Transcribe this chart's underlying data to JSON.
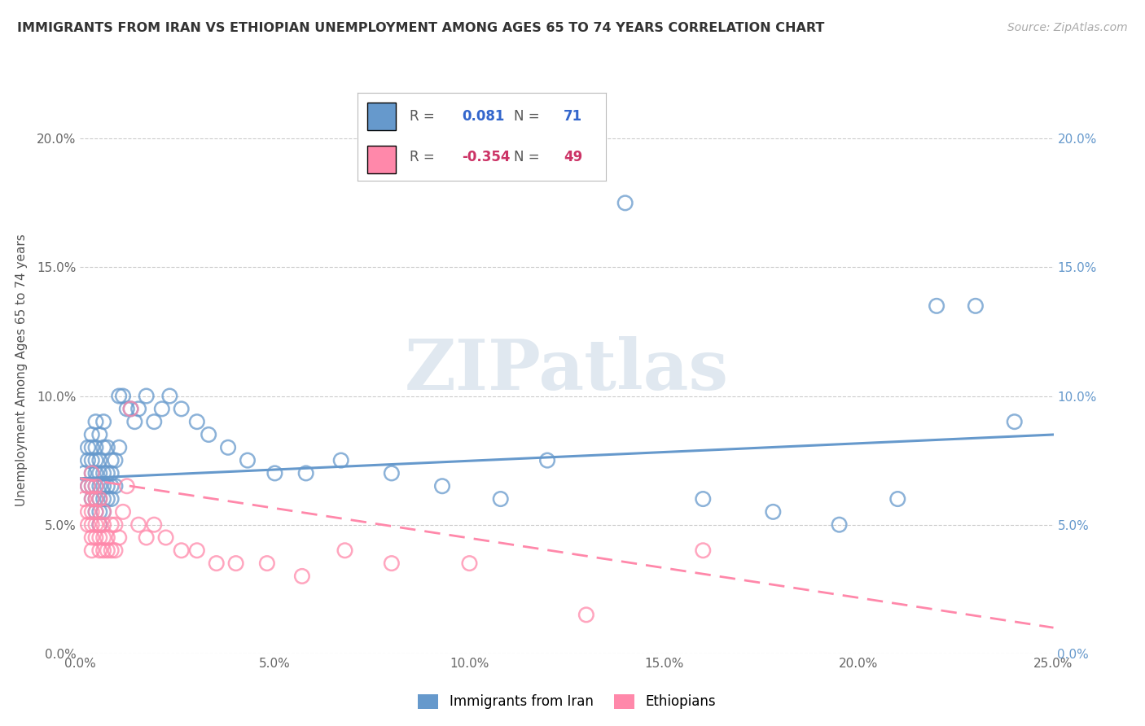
{
  "title": "IMMIGRANTS FROM IRAN VS ETHIOPIAN UNEMPLOYMENT AMONG AGES 65 TO 74 YEARS CORRELATION CHART",
  "source": "Source: ZipAtlas.com",
  "ylabel": "Unemployment Among Ages 65 to 74 years",
  "xlim": [
    0.0,
    0.25
  ],
  "ylim": [
    0.0,
    0.22
  ],
  "x_ticks": [
    0.0,
    0.05,
    0.1,
    0.15,
    0.2,
    0.25
  ],
  "x_tick_labels": [
    "0.0%",
    "5.0%",
    "10.0%",
    "15.0%",
    "20.0%",
    "25.0%"
  ],
  "y_ticks": [
    0.0,
    0.05,
    0.1,
    0.15,
    0.2
  ],
  "y_tick_labels": [
    "0.0%",
    "5.0%",
    "10.0%",
    "15.0%",
    "20.0%"
  ],
  "iran_color": "#6699cc",
  "ethiopia_color": "#ff88aa",
  "iran_R": 0.081,
  "iran_N": 71,
  "ethiopia_R": -0.354,
  "ethiopia_N": 49,
  "watermark": "ZIPatlas",
  "iran_scatter_x": [
    0.001,
    0.002,
    0.002,
    0.002,
    0.003,
    0.003,
    0.003,
    0.003,
    0.003,
    0.003,
    0.004,
    0.004,
    0.004,
    0.004,
    0.004,
    0.004,
    0.004,
    0.005,
    0.005,
    0.005,
    0.005,
    0.005,
    0.005,
    0.005,
    0.006,
    0.006,
    0.006,
    0.006,
    0.006,
    0.006,
    0.007,
    0.007,
    0.007,
    0.007,
    0.008,
    0.008,
    0.008,
    0.008,
    0.009,
    0.009,
    0.01,
    0.01,
    0.011,
    0.012,
    0.013,
    0.014,
    0.015,
    0.017,
    0.019,
    0.021,
    0.023,
    0.026,
    0.03,
    0.033,
    0.038,
    0.043,
    0.05,
    0.058,
    0.067,
    0.08,
    0.093,
    0.108,
    0.12,
    0.14,
    0.16,
    0.178,
    0.195,
    0.21,
    0.22,
    0.23,
    0.24
  ],
  "iran_scatter_y": [
    0.07,
    0.065,
    0.075,
    0.08,
    0.06,
    0.065,
    0.07,
    0.075,
    0.08,
    0.085,
    0.055,
    0.06,
    0.065,
    0.07,
    0.075,
    0.08,
    0.09,
    0.05,
    0.055,
    0.06,
    0.065,
    0.07,
    0.075,
    0.085,
    0.055,
    0.06,
    0.065,
    0.07,
    0.08,
    0.09,
    0.06,
    0.065,
    0.07,
    0.08,
    0.06,
    0.065,
    0.07,
    0.075,
    0.065,
    0.075,
    0.08,
    0.1,
    0.1,
    0.095,
    0.095,
    0.09,
    0.095,
    0.1,
    0.09,
    0.095,
    0.1,
    0.095,
    0.09,
    0.085,
    0.08,
    0.075,
    0.07,
    0.07,
    0.075,
    0.07,
    0.065,
    0.06,
    0.075,
    0.175,
    0.06,
    0.055,
    0.05,
    0.06,
    0.135,
    0.135,
    0.09
  ],
  "ethiopia_scatter_x": [
    0.001,
    0.002,
    0.002,
    0.002,
    0.003,
    0.003,
    0.003,
    0.003,
    0.003,
    0.003,
    0.003,
    0.004,
    0.004,
    0.004,
    0.004,
    0.004,
    0.005,
    0.005,
    0.005,
    0.005,
    0.006,
    0.006,
    0.006,
    0.006,
    0.007,
    0.007,
    0.008,
    0.008,
    0.009,
    0.009,
    0.01,
    0.011,
    0.012,
    0.013,
    0.015,
    0.017,
    0.019,
    0.022,
    0.026,
    0.03,
    0.035,
    0.04,
    0.048,
    0.057,
    0.068,
    0.08,
    0.1,
    0.13,
    0.16
  ],
  "ethiopia_scatter_y": [
    0.06,
    0.05,
    0.055,
    0.065,
    0.04,
    0.045,
    0.05,
    0.055,
    0.06,
    0.065,
    0.07,
    0.045,
    0.05,
    0.055,
    0.06,
    0.065,
    0.04,
    0.045,
    0.05,
    0.06,
    0.04,
    0.045,
    0.05,
    0.055,
    0.04,
    0.045,
    0.04,
    0.05,
    0.04,
    0.05,
    0.045,
    0.055,
    0.065,
    0.095,
    0.05,
    0.045,
    0.05,
    0.045,
    0.04,
    0.04,
    0.035,
    0.035,
    0.035,
    0.03,
    0.04,
    0.035,
    0.035,
    0.015,
    0.04
  ],
  "iran_line_x": [
    0.0,
    0.25
  ],
  "iran_line_y": [
    0.068,
    0.085
  ],
  "eth_line_x": [
    0.0,
    0.25
  ],
  "eth_line_y": [
    0.068,
    0.01
  ]
}
